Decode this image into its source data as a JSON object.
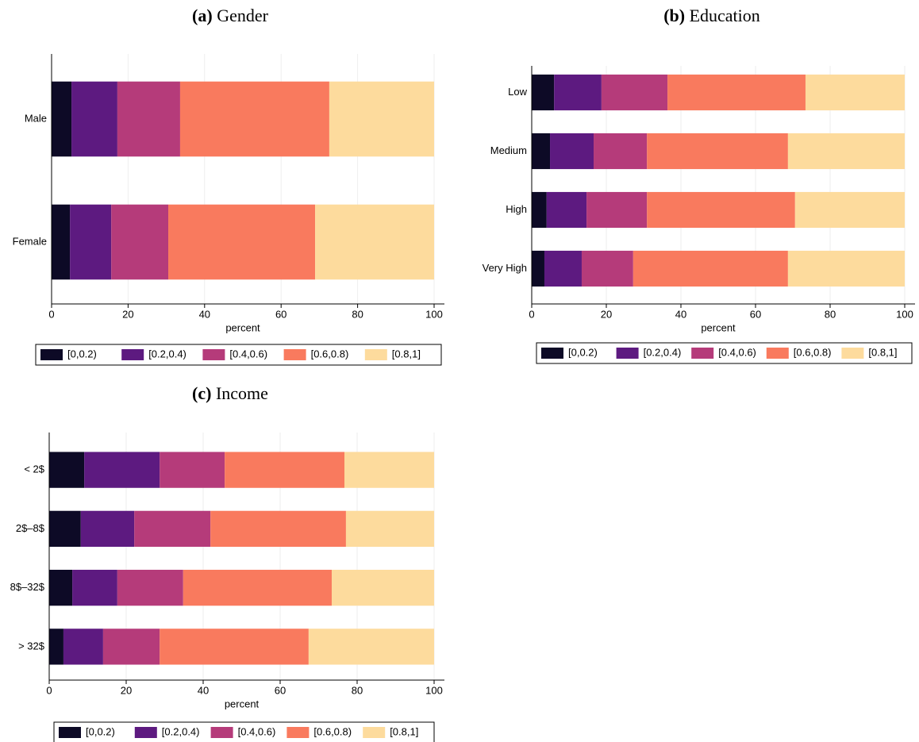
{
  "chart_data": [
    {
      "type": "hbar-stacked",
      "panel": "(a)",
      "title": "Gender",
      "xlabel": "percent",
      "categories": [
        "Male",
        "Female"
      ],
      "xlim": [
        0,
        100
      ],
      "xticks": [
        0,
        20,
        40,
        60,
        80,
        100
      ],
      "grid": true,
      "legend": "bottom",
      "series": [
        {
          "name": "[0,0.2)",
          "color": "#0d0a26",
          "values": [
            5.2,
            4.8
          ]
        },
        {
          "name": "[0.2,0.4)",
          "color": "#5d1a80",
          "values": [
            12.0,
            10.8
          ]
        },
        {
          "name": "[0.4,0.6)",
          "color": "#b53b7a",
          "values": [
            16.4,
            14.9
          ]
        },
        {
          "name": "[0.6,0.8)",
          "color": "#f97a5e",
          "values": [
            39.0,
            38.4
          ]
        },
        {
          "name": "[0.8,1]",
          "color": "#fddb9d",
          "values": [
            27.4,
            31.1
          ]
        }
      ]
    },
    {
      "type": "hbar-stacked",
      "panel": "(b)",
      "title": "Education",
      "xlabel": "percent",
      "categories": [
        "Low",
        "Medium",
        "High",
        "Very High"
      ],
      "xlim": [
        0,
        100
      ],
      "xticks": [
        0,
        20,
        40,
        60,
        80,
        100
      ],
      "grid": true,
      "legend": "bottom",
      "series": [
        {
          "name": "[0,0.2)",
          "color": "#0d0a26",
          "values": [
            6.0,
            4.9,
            4.0,
            3.4
          ]
        },
        {
          "name": "[0.2,0.4)",
          "color": "#5d1a80",
          "values": [
            12.7,
            11.7,
            10.7,
            10.0
          ]
        },
        {
          "name": "[0.4,0.6)",
          "color": "#b53b7a",
          "values": [
            17.7,
            14.3,
            16.2,
            13.8
          ]
        },
        {
          "name": "[0.6,0.8)",
          "color": "#f97a5e",
          "values": [
            37.0,
            37.8,
            39.7,
            41.5
          ]
        },
        {
          "name": "[0.8,1]",
          "color": "#fddb9d",
          "values": [
            26.6,
            31.3,
            29.4,
            31.3
          ]
        }
      ]
    },
    {
      "type": "hbar-stacked",
      "panel": "(c)",
      "title": "Income",
      "xlabel": "percent",
      "categories": [
        "< 2$",
        "2$–8$",
        "8$–32$",
        "> 32$"
      ],
      "xlim": [
        0,
        100
      ],
      "xticks": [
        0,
        20,
        40,
        60,
        80,
        100
      ],
      "grid": true,
      "legend": "bottom",
      "series": [
        {
          "name": "[0,0.2)",
          "color": "#0d0a26",
          "values": [
            9.1,
            8.2,
            6.0,
            3.7
          ]
        },
        {
          "name": "[0.2,0.4)",
          "color": "#5d1a80",
          "values": [
            19.6,
            13.9,
            11.7,
            10.3
          ]
        },
        {
          "name": "[0.4,0.6)",
          "color": "#b53b7a",
          "values": [
            16.9,
            19.8,
            17.1,
            14.7
          ]
        },
        {
          "name": "[0.6,0.8)",
          "color": "#f97a5e",
          "values": [
            31.1,
            35.2,
            38.6,
            38.7
          ]
        },
        {
          "name": "[0.8,1]",
          "color": "#fddb9d",
          "values": [
            23.3,
            22.9,
            26.6,
            32.6
          ]
        }
      ]
    }
  ]
}
